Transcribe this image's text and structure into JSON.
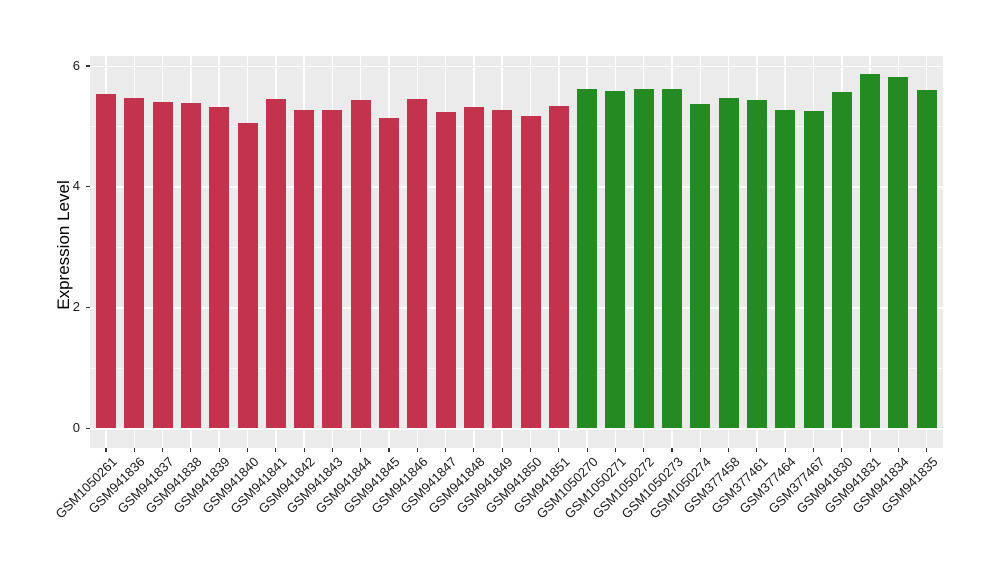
{
  "chart_data": {
    "type": "bar",
    "title": "",
    "xlabel": "",
    "ylabel": "Expression Level",
    "ylim": [
      0,
      6
    ],
    "y_ticks": [
      0,
      2,
      4,
      6
    ],
    "y_minor_ticks": [
      1,
      3,
      5
    ],
    "grid": true,
    "legend_position": "none",
    "categories": [
      "GSM1050261",
      "GSM941836",
      "GSM941837",
      "GSM941838",
      "GSM941839",
      "GSM941840",
      "GSM941841",
      "GSM941842",
      "GSM941843",
      "GSM941844",
      "GSM941845",
      "GSM941846",
      "GSM941847",
      "GSM941848",
      "GSM941849",
      "GSM941850",
      "GSM941851",
      "GSM1050270",
      "GSM1050271",
      "GSM1050272",
      "GSM1050273",
      "GSM1050274",
      "GSM377458",
      "GSM377461",
      "GSM377464",
      "GSM377467",
      "GSM941830",
      "GSM941831",
      "GSM941834",
      "GSM941835"
    ],
    "values": [
      5.53,
      5.46,
      5.4,
      5.38,
      5.31,
      5.05,
      5.45,
      5.26,
      5.26,
      5.43,
      5.13,
      5.45,
      5.23,
      5.31,
      5.27,
      5.17,
      5.33,
      5.61,
      5.58,
      5.61,
      5.61,
      5.36,
      5.46,
      5.43,
      5.26,
      5.25,
      5.56,
      5.86,
      5.81,
      5.6
    ],
    "color_groups": [
      {
        "name": "group-1",
        "color": "#C3334E",
        "from": 0,
        "to": 16
      },
      {
        "name": "group-2",
        "color": "#238B22",
        "from": 17,
        "to": 29
      }
    ],
    "style": {
      "panel_background": "#EBEBEB",
      "grid_color": "#FFFFFF",
      "tick_color": "#333333",
      "axis_text_color": "#1a1a1a",
      "axis_title_color": "#000000",
      "figure_background": "#FFFFFF"
    }
  }
}
